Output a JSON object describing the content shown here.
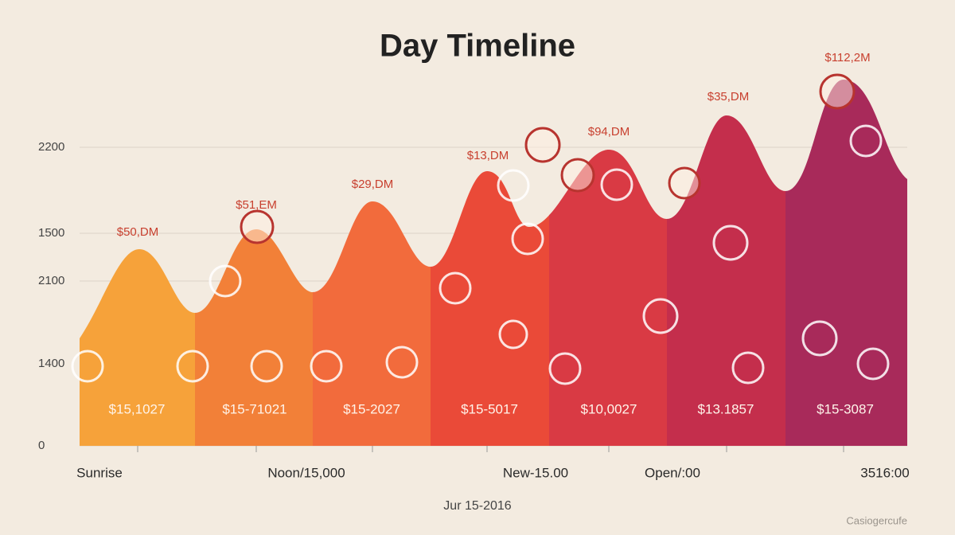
{
  "title": "Day Timeline",
  "y_axis_labels": [
    "2200",
    "1500",
    "2100",
    "1400",
    "0"
  ],
  "peak_labels": [
    "$50,DM",
    "$51,EM",
    "$29,DM",
    "$13,DM",
    "$94,DM",
    "$35,DM",
    "$112,2M"
  ],
  "band_labels": [
    "$15,1027",
    "$15-71021",
    "$15-2027",
    "$15-5017",
    "$10,0027",
    "$13.1857",
    "$15-3087"
  ],
  "x_labels": [
    "Sunrise",
    "Noon/15,000",
    "New-15.00",
    "Open/:00",
    "3516:00"
  ],
  "date": "Jur 15-2016",
  "watermark": "Casiogercufe"
}
